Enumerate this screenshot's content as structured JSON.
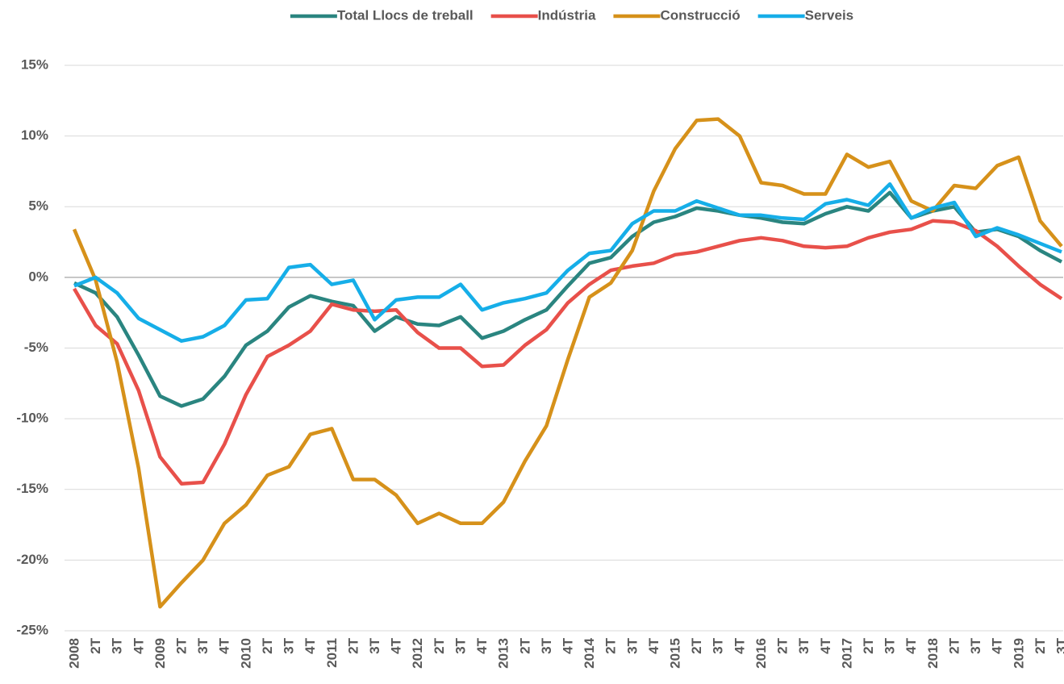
{
  "chart_data": {
    "type": "line",
    "categories": [
      "2008",
      "2T",
      "3T",
      "4T",
      "2009",
      "2T",
      "3T",
      "4T",
      "2010",
      "2T",
      "3T",
      "4T",
      "2011",
      "2T",
      "3T",
      "4T",
      "2012",
      "2T",
      "3T",
      "4T",
      "2013",
      "2T",
      "3T",
      "4T",
      "2014",
      "2T",
      "3T",
      "4T",
      "2015",
      "2T",
      "3T",
      "4T",
      "2016",
      "2T",
      "3T",
      "4T",
      "2017",
      "2T",
      "3T",
      "4T",
      "2018",
      "2T",
      "3T",
      "4T",
      "2019",
      "2T",
      "3T"
    ],
    "series": [
      {
        "name": "Total Llocs de treball",
        "color": "#2a8580",
        "values": [
          -0.4,
          -1.1,
          -2.8,
          -5.5,
          -8.4,
          -9.1,
          -8.6,
          -7.0,
          -4.8,
          -3.8,
          -2.1,
          -1.3,
          -1.7,
          -2.0,
          -3.8,
          -2.8,
          -3.3,
          -3.4,
          -2.8,
          -4.3,
          -3.8,
          -3.0,
          -2.3,
          -0.6,
          1.0,
          1.4,
          2.9,
          3.9,
          4.3,
          4.9,
          4.7,
          4.4,
          4.2,
          3.9,
          3.8,
          4.5,
          5.0,
          4.7,
          6.0,
          4.2,
          4.7,
          5.0,
          3.2,
          3.4,
          2.9,
          1.9,
          1.1
        ]
      },
      {
        "name": "Indústria",
        "color": "#e8504a",
        "values": [
          -0.8,
          -3.4,
          -4.7,
          -8.0,
          -12.7,
          -14.6,
          -14.5,
          -11.8,
          -8.3,
          -5.6,
          -4.8,
          -3.8,
          -1.9,
          -2.3,
          -2.4,
          -2.3,
          -3.9,
          -5.0,
          -5.0,
          -6.3,
          -6.2,
          -4.8,
          -3.7,
          -1.8,
          -0.5,
          0.5,
          0.8,
          1.0,
          1.6,
          1.8,
          2.2,
          2.6,
          2.8,
          2.6,
          2.2,
          2.1,
          2.2,
          2.8,
          3.2,
          3.4,
          4.0,
          3.9,
          3.3,
          2.2,
          0.8,
          -0.5,
          -1.5
        ]
      },
      {
        "name": "Construcció",
        "color": "#d6911a",
        "values": [
          3.4,
          -0.2,
          -6.0,
          -13.5,
          -23.3,
          -21.6,
          -20.0,
          -17.4,
          -16.1,
          -14.0,
          -13.4,
          -11.1,
          -10.7,
          -14.3,
          -14.3,
          -15.4,
          -17.4,
          -16.7,
          -17.4,
          -17.4,
          -15.9,
          -13.0,
          -10.5,
          -5.8,
          -1.4,
          -0.4,
          1.9,
          6.1,
          9.1,
          11.1,
          11.2,
          10.0,
          6.7,
          6.5,
          5.9,
          5.9,
          8.7,
          7.8,
          8.2,
          5.4,
          4.7,
          6.5,
          6.3,
          7.9,
          8.5,
          4.0,
          2.2
        ]
      },
      {
        "name": "Serveis",
        "color": "#16aee8",
        "values": [
          -0.6,
          0.0,
          -1.1,
          -2.9,
          -3.7,
          -4.5,
          -4.2,
          -3.4,
          -1.6,
          -1.5,
          0.7,
          0.9,
          -0.5,
          -0.2,
          -3.0,
          -1.6,
          -1.4,
          -1.4,
          -0.5,
          -2.3,
          -1.8,
          -1.5,
          -1.1,
          0.5,
          1.7,
          1.9,
          3.8,
          4.7,
          4.7,
          5.4,
          4.9,
          4.4,
          4.4,
          4.2,
          4.1,
          5.2,
          5.5,
          5.1,
          6.6,
          4.2,
          4.9,
          5.3,
          2.9,
          3.5,
          3.0,
          2.4,
          1.8
        ]
      }
    ],
    "ylim": [
      -25,
      15
    ],
    "yticks": [
      {
        "value": -25,
        "label": "-25%"
      },
      {
        "value": -20,
        "label": "-20%"
      },
      {
        "value": -15,
        "label": "-15%"
      },
      {
        "value": -10,
        "label": "-10%"
      },
      {
        "value": -5,
        "label": "-5%"
      },
      {
        "value": 0,
        "label": "0%"
      },
      {
        "value": 5,
        "label": "5%"
      },
      {
        "value": 10,
        "label": "10%"
      },
      {
        "value": 15,
        "label": "15%"
      }
    ],
    "grid": true,
    "legend": "top"
  }
}
